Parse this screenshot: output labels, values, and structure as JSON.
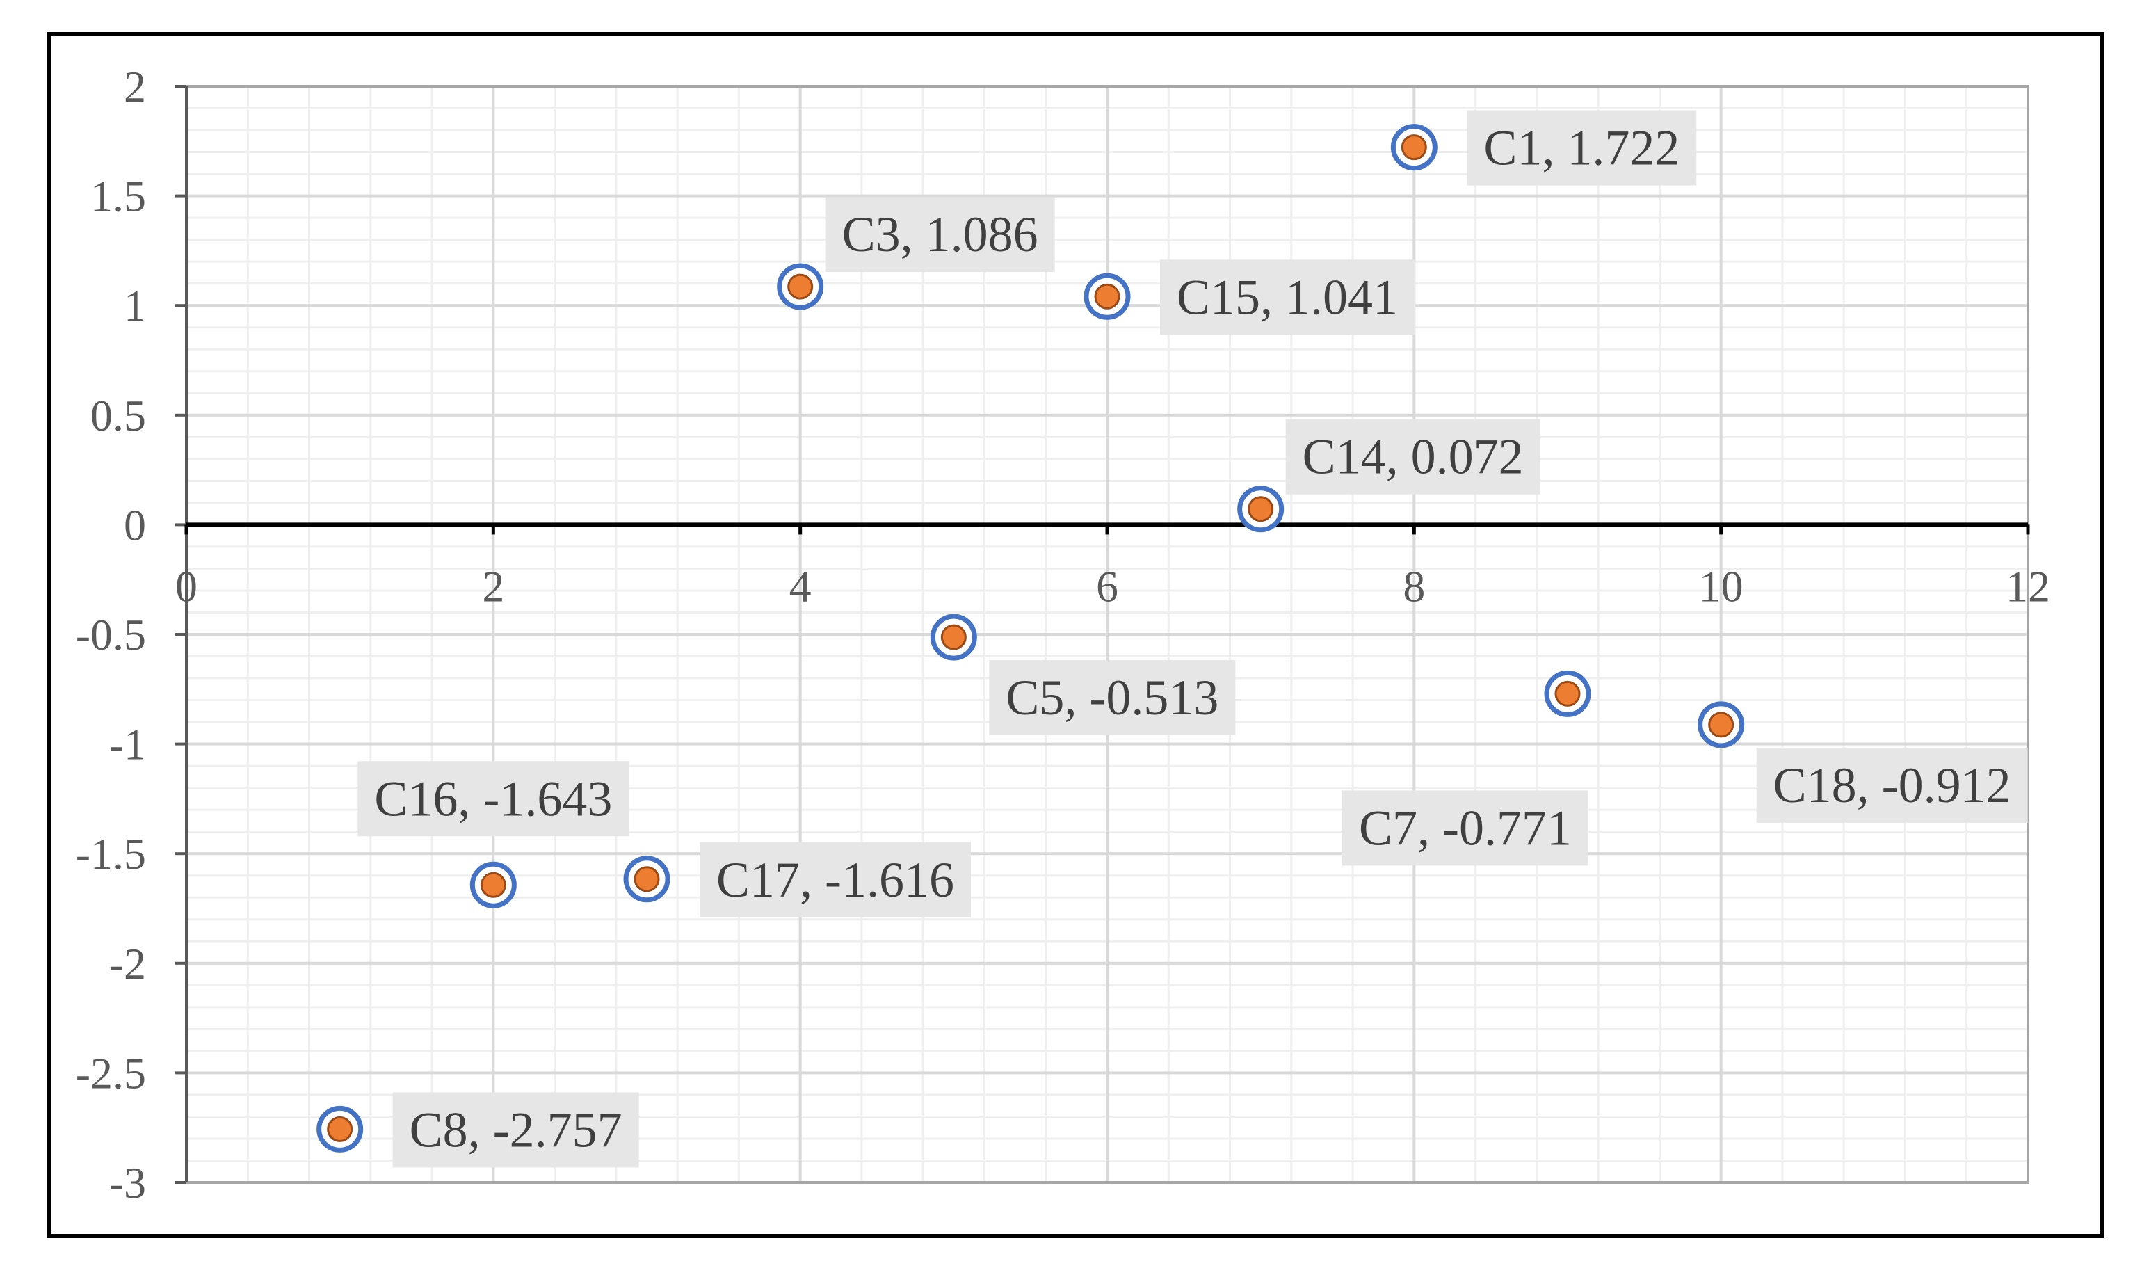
{
  "chart_data": {
    "type": "scatter",
    "title": "",
    "xlabel": "",
    "ylabel": "",
    "xlim": [
      0,
      12
    ],
    "ylim": [
      -3,
      2
    ],
    "x_ticks": [
      0,
      2,
      4,
      6,
      8,
      10,
      12
    ],
    "y_ticks": [
      2,
      1.5,
      1,
      0.5,
      0,
      -0.5,
      -1,
      -1.5,
      -2,
      -2.5,
      -3
    ],
    "x_tick_labels": [
      "0",
      "2",
      "4",
      "6",
      "8",
      "10",
      "12"
    ],
    "y_tick_labels": [
      "2",
      "1.5",
      "1",
      "0.5",
      "0",
      "-0.5",
      "-1",
      "-1.5",
      "-2",
      "-2.5",
      "-3"
    ],
    "grid": true,
    "minor_grid": true,
    "legend": "none",
    "series": [
      {
        "marker_fill": "#ED7D31",
        "marker_edge": "#4472C4",
        "points": [
          {
            "x": 1,
            "y": -2.757,
            "label": "C8, -2.757",
            "label_pos": "right"
          },
          {
            "x": 2,
            "y": -1.643,
            "label": "C16, -1.643",
            "label_pos": "above"
          },
          {
            "x": 3,
            "y": -1.616,
            "label": "C17, -1.616",
            "label_pos": "right"
          },
          {
            "x": 4,
            "y": 1.086,
            "label": "C3, 1.086",
            "label_pos": "above-right"
          },
          {
            "x": 5,
            "y": -0.513,
            "label": "C5, -0.513",
            "label_pos": "below-right"
          },
          {
            "x": 6,
            "y": 1.041,
            "label": "C15, 1.041",
            "label_pos": "right"
          },
          {
            "x": 7,
            "y": 0.072,
            "label": "C14, 0.072",
            "label_pos": "above-right"
          },
          {
            "x": 8,
            "y": 1.722,
            "label": "C1, 1.722",
            "label_pos": "right"
          },
          {
            "x": 9,
            "y": -0.771,
            "label": "C7, -0.771",
            "label_pos": "below-left"
          },
          {
            "x": 10,
            "y": -0.912,
            "label": "C18, -0.912",
            "label_pos": "below-right"
          }
        ]
      }
    ]
  },
  "colors": {
    "frame": "#000000",
    "axis_zero_line": "#000000",
    "major_grid": "#d9d9d9",
    "minor_grid": "#efefef",
    "axis_frame": "#a6a6a6",
    "tick_label": "#595959",
    "label_box": "#e6e6e6",
    "label_text": "#404040"
  }
}
